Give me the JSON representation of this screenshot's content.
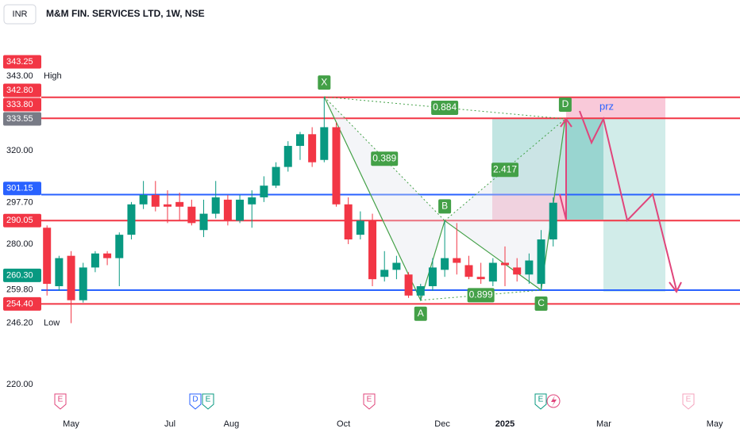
{
  "chart_data": {
    "type": "candlestick",
    "currency": "INR",
    "title": "M&M FIN. SERVICES LTD, 1W, NSE",
    "up_color": "#089981",
    "down_color": "#f23645",
    "x": [
      0,
      1,
      2,
      3,
      4,
      5,
      6,
      7,
      8,
      9,
      10,
      11,
      12,
      13,
      14,
      15,
      16,
      17,
      18,
      19,
      20,
      21,
      22,
      23,
      24,
      25,
      26,
      27,
      28,
      29,
      30,
      31,
      32,
      33,
      34,
      35,
      36,
      37,
      38,
      39,
      40,
      41,
      42
    ],
    "open": [
      287,
      262,
      275,
      256,
      270,
      276,
      274,
      284,
      297,
      301,
      297,
      298,
      296,
      286,
      293,
      299,
      290,
      297,
      300,
      305,
      313,
      322,
      327,
      316,
      330,
      297,
      284,
      290,
      266,
      269,
      267,
      258,
      262,
      269,
      274,
      271,
      266,
      264,
      272,
      270,
      267,
      263,
      282
    ],
    "high": [
      288,
      275,
      277,
      272,
      277,
      277,
      285,
      298,
      307,
      307,
      303,
      302,
      299,
      299,
      307,
      301,
      301,
      303,
      309,
      315,
      324,
      328,
      330,
      343,
      332,
      300,
      294,
      293,
      277,
      275,
      268,
      263,
      274,
      290,
      289,
      275,
      272,
      274,
      279,
      274,
      276,
      286,
      300
    ],
    "low": [
      258,
      260,
      246.2,
      255,
      268,
      271,
      262,
      282,
      295,
      294,
      289,
      290,
      288,
      283,
      291,
      288,
      289,
      287,
      298,
      304,
      311,
      316,
      313,
      315,
      296,
      280,
      282,
      262,
      264,
      265,
      257,
      256,
      260,
      266,
      267,
      265,
      263,
      262,
      262,
      264,
      263,
      260.3,
      279
    ],
    "close": [
      263,
      274,
      256,
      270,
      276,
      274,
      284,
      297,
      301,
      296,
      296,
      296,
      289,
      293,
      300,
      290,
      299,
      300,
      305,
      313,
      322,
      327,
      315,
      330,
      297,
      282,
      290,
      265,
      269,
      272,
      258,
      262,
      270,
      274,
      272,
      266,
      265,
      272,
      271,
      267,
      273,
      282,
      297.7
    ],
    "xlim": [
      -3.9,
      57.5
    ],
    "xticks": [
      {
        "value": 2,
        "label": "May"
      },
      {
        "value": 10.2,
        "label": "Jul"
      },
      {
        "value": 15.3,
        "label": "Aug"
      },
      {
        "value": 24.6,
        "label": "Oct"
      },
      {
        "value": 32.8,
        "label": "Dec"
      },
      {
        "value": 38,
        "label": "2025"
      },
      {
        "value": 46.2,
        "label": "Mar"
      },
      {
        "value": 55.4,
        "label": "May"
      }
    ],
    "ylim": [
      208.1,
      384.4
    ],
    "yticks": [
      {
        "value": 320,
        "label": "320.00"
      },
      {
        "value": 280,
        "label": "280.00"
      },
      {
        "value": 220,
        "label": "220.00"
      }
    ],
    "price_labels": [
      {
        "value": 343.25,
        "label": "343.25",
        "color": "#f23645"
      },
      {
        "value": 343,
        "label": "343.00",
        "color": "#ffffff",
        "tag": "High"
      },
      {
        "value": 342.8,
        "label": "342.80",
        "color": "#f23645",
        "line": true
      },
      {
        "value": 333.8,
        "label": "333.80",
        "color": "#f23645",
        "line": true
      },
      {
        "value": 333.55,
        "label": "333.55",
        "color": "#787b86"
      },
      {
        "value": 301.15,
        "label": "301.15",
        "color": "#2962ff",
        "line": true
      },
      {
        "value": 297.7,
        "label": "297.70",
        "color": "#ffffff"
      },
      {
        "value": 290.05,
        "label": "290.05",
        "color": "#f23645",
        "line": true
      },
      {
        "value": 260.3,
        "label": "260.30",
        "color": "#089981",
        "line": true
      },
      {
        "value": 259.8,
        "label": "259.80",
        "color": "#ffffff"
      },
      {
        "value": 254.4,
        "label": "254.40",
        "color": "#f23645",
        "line": true
      },
      {
        "value": 246.2,
        "label": "246.20",
        "color": "#ffffff",
        "tag": "Low"
      }
    ],
    "pattern": {
      "color": "#43a047",
      "points": [
        {
          "label": "X",
          "x": 23,
          "y": 343
        },
        {
          "label": "A",
          "x": 31,
          "y": 256
        },
        {
          "label": "B",
          "x": 33,
          "y": 290
        },
        {
          "label": "C",
          "x": 41,
          "y": 260.3
        },
        {
          "label": "D",
          "x": 43,
          "y": 333.55
        }
      ],
      "ratios": [
        0.389,
        2.417,
        0.899,
        0.884
      ]
    },
    "annotation": "prz",
    "events": [
      "E",
      "D",
      "E",
      "E",
      "E",
      "E"
    ]
  }
}
